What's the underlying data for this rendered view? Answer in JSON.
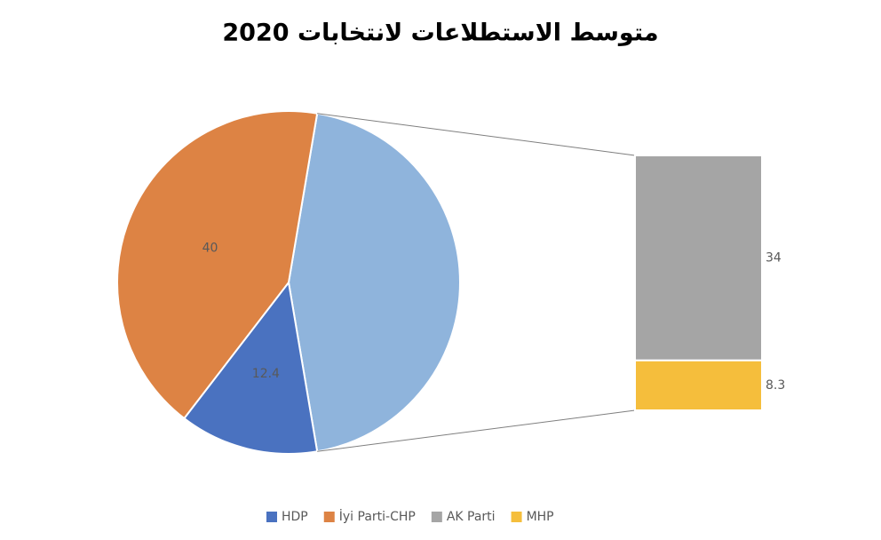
{
  "chart_data": {
    "type": "bar-of-pie",
    "title": "متوسط الاستطلاعات لانتخابات 2020",
    "series": [
      {
        "name": "HDP",
        "color": "#4a72c0",
        "value": 12.4,
        "plot": "pie"
      },
      {
        "name": "İyi Parti-CHP",
        "color": "#dd8344",
        "value": 40,
        "plot": "pie"
      },
      {
        "name": "AK Parti",
        "color": "#a5a5a5",
        "value": 34,
        "plot": "bar"
      },
      {
        "name": "MHP",
        "color": "#f5be3c",
        "value": 8.3,
        "plot": "bar"
      }
    ],
    "other_color": "#8fb4dc",
    "legend": "bottom"
  }
}
